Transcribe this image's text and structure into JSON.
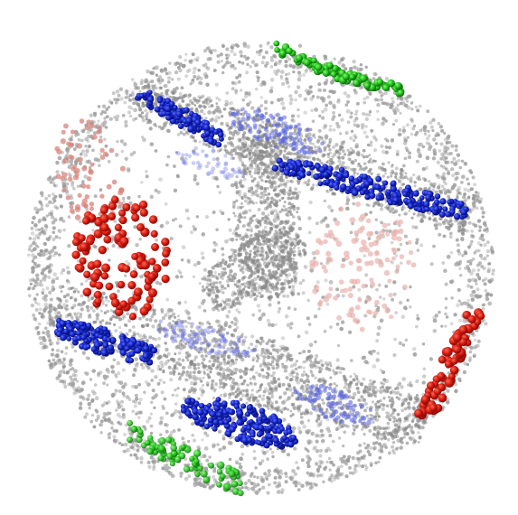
{
  "figure": {
    "subject": "point-cloud-sphere",
    "background_color": "#ffffff",
    "surface_point_color": "#9a9a9a",
    "clusters": [
      {
        "name": "green-cluster-top",
        "color": "#22bb22"
      },
      {
        "name": "green-cluster-bottom",
        "color": "#44aa44"
      },
      {
        "name": "red-cluster-left",
        "color": "#cc1a10"
      },
      {
        "name": "red-cluster-right",
        "color": "#cc1a10"
      },
      {
        "name": "blue-band-top",
        "color": "#1020c0"
      },
      {
        "name": "blue-band-middle",
        "color": "#1020c0"
      },
      {
        "name": "blue-band-left",
        "color": "#1020c0"
      },
      {
        "name": "blue-band-bottom",
        "color": "#1020c0"
      }
    ]
  }
}
